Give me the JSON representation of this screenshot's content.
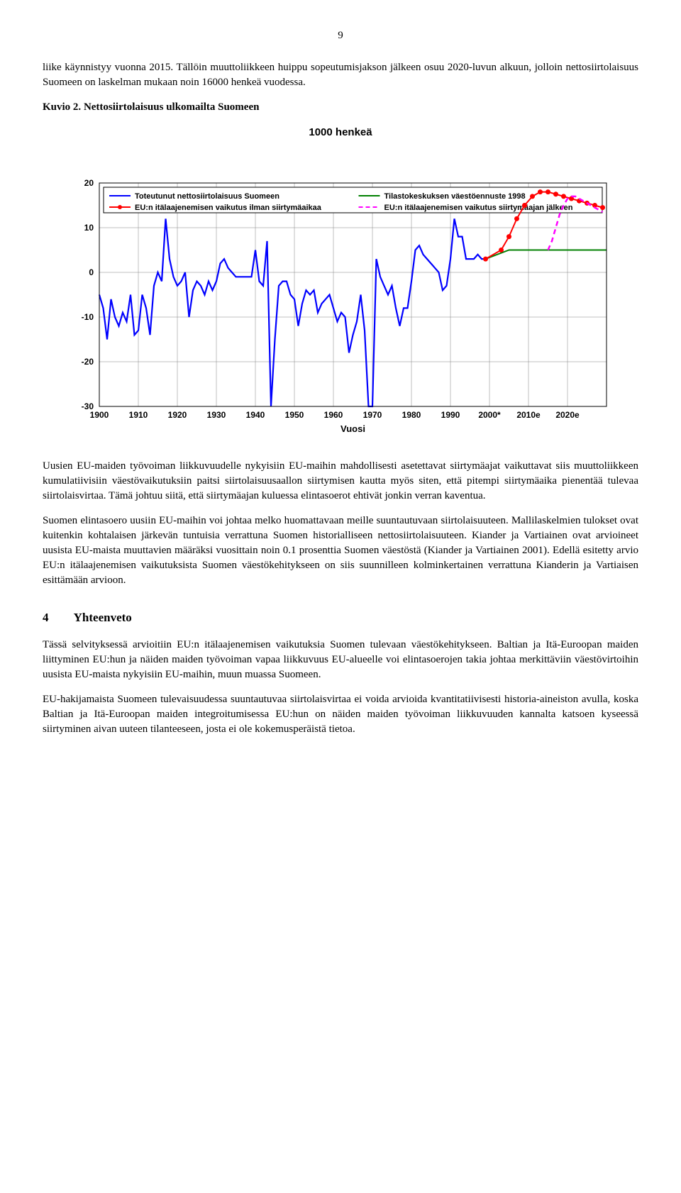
{
  "page_number": "9",
  "para_intro": "liike käynnistyy vuonna 2015. Tällöin muuttoliikkeen huippu sopeutumisjakson jälkeen osuu 2020-luvun alkuun, jolloin nettosiirtolaisuus Suomeen on laskelman mukaan noin 16000 henkeä vuodessa.",
  "kuvio_label": "Kuvio 2.",
  "kuvio_caption": "Nettosiirtolaisuus ulkomailta Suomeen",
  "chart": {
    "title": "1000 henkeä",
    "x_axis_label": "Vuosi",
    "x_min": 1900,
    "x_max": 2030,
    "x_ticks": [
      "1900",
      "1910",
      "1920",
      "1930",
      "1940",
      "1950",
      "1960",
      "1970",
      "1980",
      "1990",
      "2000*",
      "2010e",
      "2020e"
    ],
    "y_min": -30,
    "y_max": 20,
    "y_ticks": [
      -30,
      -20,
      -10,
      0,
      10,
      20
    ],
    "background_color": "#ffffff",
    "border_color": "#000000",
    "grid_color": "#808080",
    "legend": {
      "border_color": "#000000",
      "items": [
        {
          "label": "Toteutunut nettosiirtolaisuus Suomeen",
          "color": "#0000ff",
          "style": "solid",
          "width": 2
        },
        {
          "label": "Tilastokeskuksen väestöennuste 1998",
          "color": "#008000",
          "style": "solid",
          "width": 2
        },
        {
          "label": "EU:n itälaajenemisen vaikutus ilman siirtymäaikaa",
          "color": "#ff0000",
          "style": "solid_dots",
          "width": 2
        },
        {
          "label": "EU:n itälaajenemisen vaikutus siirtymäajan jälkeen",
          "color": "#ff00ff",
          "style": "dashed",
          "width": 2
        }
      ]
    },
    "series_blue": [
      [
        1900,
        -5
      ],
      [
        1901,
        -8
      ],
      [
        1902,
        -15
      ],
      [
        1903,
        -6
      ],
      [
        1904,
        -10
      ],
      [
        1905,
        -12
      ],
      [
        1906,
        -9
      ],
      [
        1907,
        -11
      ],
      [
        1908,
        -5
      ],
      [
        1909,
        -14
      ],
      [
        1910,
        -13
      ],
      [
        1911,
        -5
      ],
      [
        1912,
        -8
      ],
      [
        1913,
        -14
      ],
      [
        1914,
        -3
      ],
      [
        1915,
        0
      ],
      [
        1916,
        -2
      ],
      [
        1917,
        12
      ],
      [
        1918,
        3
      ],
      [
        1919,
        -1
      ],
      [
        1920,
        -3
      ],
      [
        1921,
        -2
      ],
      [
        1922,
        0
      ],
      [
        1923,
        -10
      ],
      [
        1924,
        -4
      ],
      [
        1925,
        -2
      ],
      [
        1926,
        -3
      ],
      [
        1927,
        -5
      ],
      [
        1928,
        -2
      ],
      [
        1929,
        -4
      ],
      [
        1930,
        -2
      ],
      [
        1931,
        2
      ],
      [
        1932,
        3
      ],
      [
        1933,
        1
      ],
      [
        1934,
        0
      ],
      [
        1935,
        -1
      ],
      [
        1936,
        -1
      ],
      [
        1937,
        -1
      ],
      [
        1938,
        -1
      ],
      [
        1939,
        -1
      ],
      [
        1940,
        5
      ],
      [
        1941,
        -2
      ],
      [
        1942,
        -3
      ],
      [
        1943,
        7
      ],
      [
        1944,
        -55
      ],
      [
        1945,
        -15
      ],
      [
        1946,
        -3
      ],
      [
        1947,
        -2
      ],
      [
        1948,
        -2
      ],
      [
        1949,
        -5
      ],
      [
        1950,
        -6
      ],
      [
        1951,
        -12
      ],
      [
        1952,
        -7
      ],
      [
        1953,
        -4
      ],
      [
        1954,
        -5
      ],
      [
        1955,
        -4
      ],
      [
        1956,
        -9
      ],
      [
        1957,
        -7
      ],
      [
        1958,
        -6
      ],
      [
        1959,
        -5
      ],
      [
        1960,
        -8
      ],
      [
        1961,
        -11
      ],
      [
        1962,
        -9
      ],
      [
        1963,
        -10
      ],
      [
        1964,
        -18
      ],
      [
        1965,
        -14
      ],
      [
        1966,
        -11
      ],
      [
        1967,
        -5
      ],
      [
        1968,
        -13
      ],
      [
        1969,
        -35
      ],
      [
        1970,
        -36
      ],
      [
        1971,
        3
      ],
      [
        1972,
        -1
      ],
      [
        1973,
        -3
      ],
      [
        1974,
        -5
      ],
      [
        1975,
        -3
      ],
      [
        1976,
        -8
      ],
      [
        1977,
        -12
      ],
      [
        1978,
        -8
      ],
      [
        1979,
        -8
      ],
      [
        1980,
        -2
      ],
      [
        1981,
        5
      ],
      [
        1982,
        6
      ],
      [
        1983,
        4
      ],
      [
        1984,
        3
      ],
      [
        1985,
        2
      ],
      [
        1986,
        1
      ],
      [
        1987,
        0
      ],
      [
        1988,
        -4
      ],
      [
        1989,
        -3
      ],
      [
        1990,
        3
      ],
      [
        1991,
        12
      ],
      [
        1992,
        8
      ],
      [
        1993,
        8
      ],
      [
        1994,
        3
      ],
      [
        1995,
        3
      ],
      [
        1996,
        3
      ],
      [
        1997,
        4
      ],
      [
        1998,
        3
      ],
      [
        1999,
        3
      ]
    ],
    "series_green": [
      [
        1999,
        3
      ],
      [
        2005,
        5
      ],
      [
        2010,
        5
      ],
      [
        2015,
        5
      ],
      [
        2020,
        5
      ],
      [
        2025,
        5
      ],
      [
        2030,
        5
      ]
    ],
    "series_red": [
      [
        1999,
        3
      ],
      [
        2003,
        5
      ],
      [
        2005,
        8
      ],
      [
        2007,
        12
      ],
      [
        2009,
        15
      ],
      [
        2011,
        17
      ],
      [
        2013,
        18
      ],
      [
        2015,
        18
      ],
      [
        2017,
        17.5
      ],
      [
        2019,
        17
      ],
      [
        2021,
        16.5
      ],
      [
        2023,
        16
      ],
      [
        2025,
        15.5
      ],
      [
        2027,
        15
      ],
      [
        2029,
        14.5
      ]
    ],
    "series_magenta": [
      [
        2015,
        5
      ],
      [
        2016,
        7
      ],
      [
        2017,
        10
      ],
      [
        2018,
        13
      ],
      [
        2019,
        15
      ],
      [
        2020,
        16.5
      ],
      [
        2021,
        17
      ],
      [
        2022,
        17
      ],
      [
        2023,
        16.5
      ],
      [
        2024,
        16
      ],
      [
        2025,
        15.5
      ],
      [
        2026,
        15
      ],
      [
        2027,
        14.5
      ],
      [
        2028,
        14
      ],
      [
        2029,
        13.5
      ]
    ]
  },
  "para_after1": "Uusien EU-maiden työvoiman liikkuvuudelle nykyisiin EU-maihin mahdollisesti asetettavat siirtymäajat vaikuttavat siis muuttoliikkeen kumulatiivisiin väestövaikutuksiin paitsi siirtolaisuusaallon siirtymisen kautta myös siten, että pitempi siirtymäaika pienentää tulevaa siirtolaisvirtaa. Tämä johtuu siitä, että siirtymäajan kuluessa elintasoerot ehtivät jonkin verran kaventua.",
  "para_after2": "Suomen elintasoero uusiin EU-maihin voi johtaa melko huomattavaan meille suuntautuvaan siirtolaisuuteen. Mallilaskelmien tulokset ovat kuitenkin kohtalaisen järkevän tuntuisia verrattuna Suomen historialliseen nettosiirtolaisuuteen. Kiander ja Vartiainen ovat arvioineet uusista EU-maista muuttavien määräksi vuosittain noin 0.1 prosenttia Suomen väestöstä (Kiander ja Vartiainen 2001). Edellä esitetty arvio EU:n itälaajenemisen vaikutuksista Suomen väestökehitykseen on siis suunnilleen kolminkertainen verrattuna Kianderin ja Vartiaisen esittämään arvioon.",
  "section_number": "4",
  "section_title": "Yhteenveto",
  "para_sec1": "Tässä selvityksessä arvioitiin EU:n itälaajenemisen vaikutuksia Suomen tulevaan väestökehitykseen. Baltian ja Itä-Euroopan maiden liittyminen EU:hun ja näiden maiden työvoiman vapaa liikkuvuus EU-alueelle voi elintasoerojen takia johtaa merkittäviin väestövirtoihin uusista EU-maista nykyisiin EU-maihin, muun muassa Suomeen.",
  "para_sec2": "EU-hakijamaista Suomeen tulevaisuudessa suuntautuvaa siirtolaisvirtaa ei voida arvioida kvantitatiivisesti historia-aineiston avulla, koska Baltian ja Itä-Euroopan maiden integroitumisessa EU:hun on näiden maiden työvoiman liikkuvuuden kannalta katsoen kyseessä siirtyminen aivan uuteen tilanteeseen, josta ei ole kokemusperäistä tietoa."
}
